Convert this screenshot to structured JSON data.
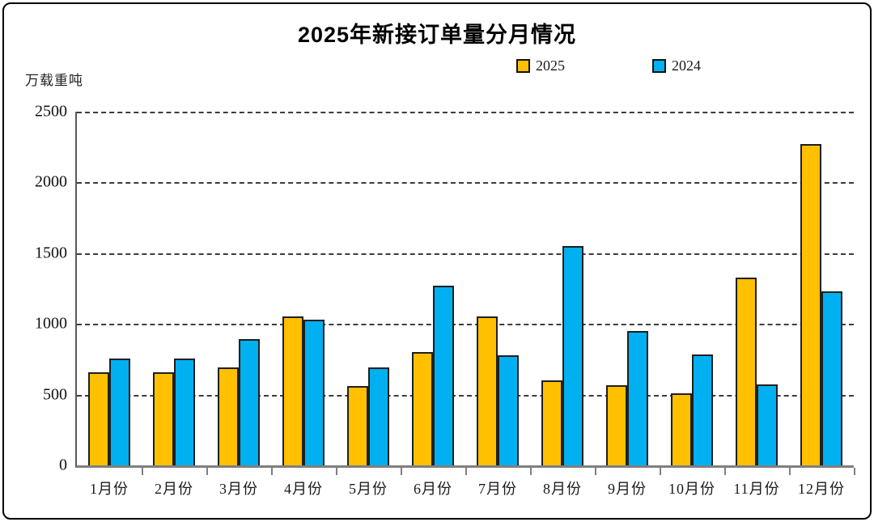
{
  "chart_data": {
    "type": "bar",
    "title": "2025年新接订单量分月情况",
    "unit_label": "万载重吨",
    "xlabel": "",
    "ylabel": "万载重吨",
    "ylim": [
      0,
      2500
    ],
    "y_ticks": [
      0,
      500,
      1000,
      1500,
      2000,
      2500
    ],
    "grid": "horizontal dashed",
    "legend_position": "top",
    "categories": [
      "1月份",
      "2月份",
      "3月份",
      "4月份",
      "5月份",
      "6月份",
      "7月份",
      "8月份",
      "9月份",
      "10月份",
      "11月份",
      "12月份"
    ],
    "series": [
      {
        "name": "2025",
        "color": "#FFC000",
        "values": [
          660,
          660,
          690,
          1050,
          560,
          800,
          1050,
          600,
          565,
          510,
          1330,
          2270
        ]
      },
      {
        "name": "2024",
        "color": "#00B0F0",
        "values": [
          755,
          755,
          895,
          1030,
          690,
          1270,
          780,
          1550,
          950,
          785,
          570,
          1230
        ]
      }
    ]
  }
}
